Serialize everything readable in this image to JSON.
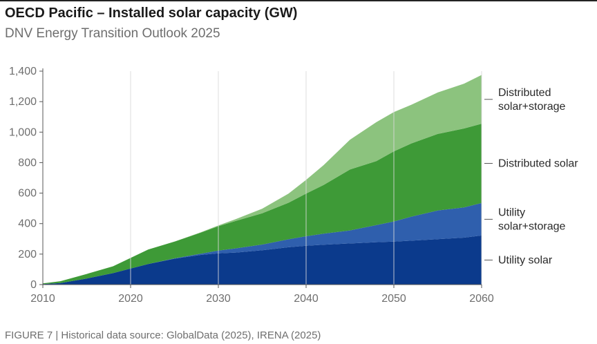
{
  "title": "OECD Pacific – Installed solar capacity (GW)",
  "subtitle": "DNV Energy Transition Outlook 2025",
  "footnote": "FIGURE 7 | Historical data source: GlobalData (2025), IRENA (2025)",
  "chart_data": {
    "type": "area",
    "stacked": true,
    "x": [
      2010,
      2012,
      2015,
      2018,
      2020,
      2022,
      2025,
      2028,
      2030,
      2032,
      2035,
      2038,
      2040,
      2042,
      2045,
      2048,
      2050,
      2052,
      2055,
      2058,
      2060
    ],
    "series": [
      {
        "name": "Utility solar",
        "color": "#0b3a8c",
        "values": [
          3,
          10,
          40,
          75,
          105,
          135,
          170,
          195,
          205,
          210,
          225,
          245,
          255,
          262,
          270,
          278,
          282,
          288,
          298,
          308,
          322
        ]
      },
      {
        "name": "Utility solar+storage",
        "color": "#2f5fad",
        "values": [
          0,
          0,
          0,
          0,
          0,
          0,
          2,
          8,
          18,
          28,
          38,
          52,
          62,
          72,
          85,
          112,
          132,
          158,
          188,
          198,
          213
        ]
      },
      {
        "name": "Distributed solar",
        "color": "#3e9a37",
        "values": [
          5,
          12,
          30,
          45,
          70,
          95,
          110,
          138,
          160,
          180,
          205,
          240,
          280,
          320,
          400,
          420,
          460,
          480,
          502,
          518,
          520
        ]
      },
      {
        "name": "Distributed solar+storage",
        "color": "#8cc37e",
        "values": [
          0,
          0,
          0,
          0,
          0,
          0,
          0,
          2,
          5,
          12,
          30,
          60,
          90,
          130,
          195,
          255,
          258,
          254,
          272,
          294,
          320
        ]
      }
    ],
    "legend_labels": [
      [
        "Distributed",
        "solar+storage"
      ],
      [
        "Distributed solar"
      ],
      [
        "Utility",
        "solar+storage"
      ],
      [
        "Utility solar"
      ]
    ],
    "xlim": [
      2010,
      2060
    ],
    "ylim": [
      0,
      1400
    ],
    "xticks": [
      2010,
      2020,
      2030,
      2040,
      2050,
      2060
    ],
    "xtick_labels": [
      "2010",
      "2020",
      "2030",
      "2040",
      "2050",
      "2060"
    ],
    "yticks": [
      0,
      200,
      400,
      600,
      800,
      1000,
      1200,
      1400
    ],
    "ytick_labels": [
      "0",
      "200",
      "400",
      "600",
      "800",
      "1,000",
      "1,200",
      "1,400"
    ],
    "grid": "vertical",
    "legend_position": "right"
  }
}
